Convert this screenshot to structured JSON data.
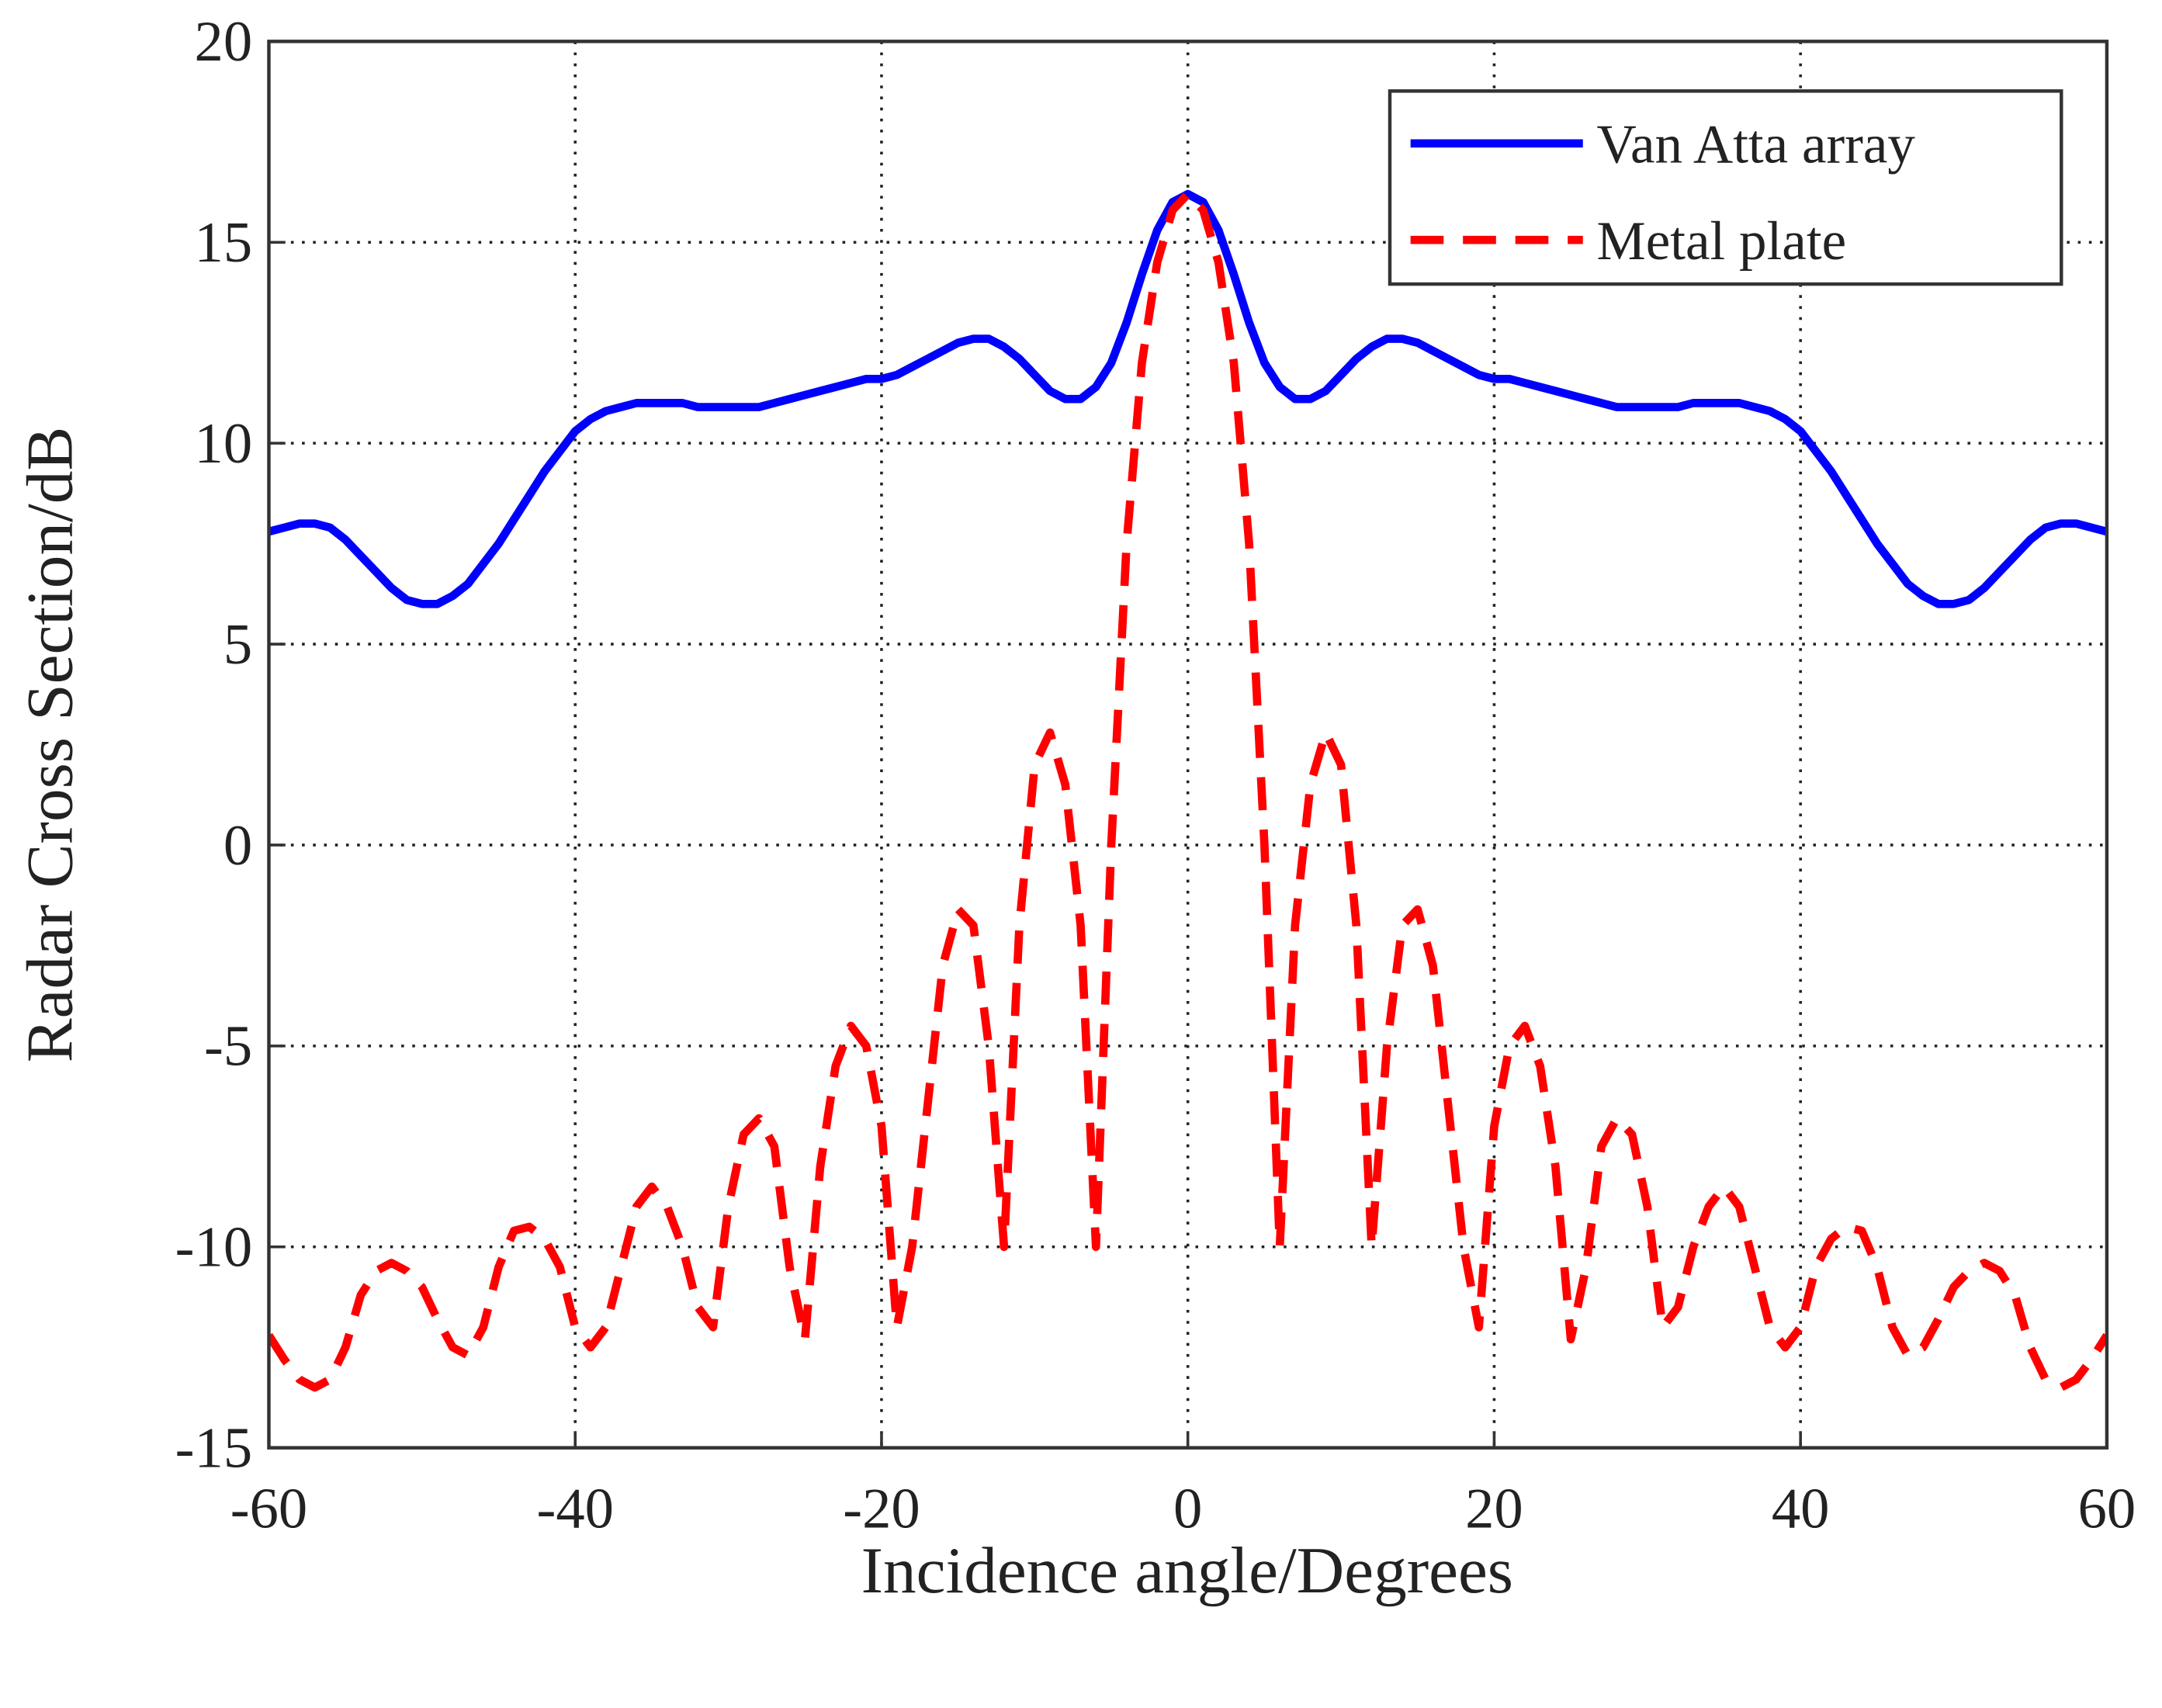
{
  "chart_data": {
    "type": "line",
    "xlabel": "Incidence angle/Degrees",
    "ylabel": "Radar Cross Section/dB",
    "x": [
      -60,
      -59,
      -58,
      -57,
      -56,
      -55,
      -54,
      -53,
      -52,
      -51,
      -50,
      -49,
      -48,
      -47,
      -46,
      -45,
      -44,
      -43,
      -42,
      -41,
      -40,
      -39,
      -38,
      -37,
      -36,
      -35,
      -34,
      -33,
      -32,
      -31,
      -30,
      -29,
      -28,
      -27,
      -26,
      -25,
      -24,
      -23,
      -22,
      -21,
      -20,
      -19,
      -18,
      -17,
      -16,
      -15,
      -14,
      -13,
      -12,
      -11,
      -10,
      -9,
      -8,
      -7,
      -6,
      -5,
      -4,
      -3,
      -2,
      -1,
      0,
      1,
      2,
      3,
      4,
      5,
      6,
      7,
      8,
      9,
      10,
      11,
      12,
      13,
      14,
      15,
      16,
      17,
      18,
      19,
      20,
      21,
      22,
      23,
      24,
      25,
      26,
      27,
      28,
      29,
      30,
      31,
      32,
      33,
      34,
      35,
      36,
      37,
      38,
      39,
      40,
      41,
      42,
      43,
      44,
      45,
      46,
      47,
      48,
      49,
      50,
      51,
      52,
      53,
      54,
      55,
      56,
      57,
      58,
      59,
      60
    ],
    "series": [
      {
        "name": "Van Atta array",
        "color": "#0000ff",
        "dash": false,
        "values": [
          7.8,
          7.9,
          8,
          8,
          7.9,
          7.6,
          7.2,
          6.8,
          6.4,
          6.1,
          6,
          6,
          6.2,
          6.5,
          7,
          7.5,
          8.1,
          8.7,
          9.3,
          9.8,
          10.3,
          10.6,
          10.8,
          10.9,
          11,
          11,
          11,
          11,
          10.9,
          10.9,
          10.9,
          10.9,
          10.9,
          11,
          11.1,
          11.2,
          11.3,
          11.4,
          11.5,
          11.6,
          11.6,
          11.7,
          11.9,
          12.1,
          12.3,
          12.5,
          12.6,
          12.6,
          12.4,
          12.1,
          11.7,
          11.3,
          11.1,
          11.1,
          11.4,
          12,
          13,
          14.2,
          15.3,
          16,
          16.2,
          16,
          15.3,
          14.2,
          13,
          12,
          11.4,
          11.1,
          11.1,
          11.3,
          11.7,
          12.1,
          12.4,
          12.6,
          12.6,
          12.5,
          12.3,
          12.1,
          11.9,
          11.7,
          11.6,
          11.6,
          11.5,
          11.4,
          11.3,
          11.2,
          11.1,
          11,
          10.9,
          10.9,
          10.9,
          10.9,
          10.9,
          11,
          11,
          11,
          11,
          10.9,
          10.8,
          10.6,
          10.3,
          9.8,
          9.3,
          8.7,
          8.1,
          7.5,
          7,
          6.5,
          6.2,
          6,
          6,
          6.1,
          6.4,
          6.8,
          7.2,
          7.6,
          7.9,
          8,
          8,
          7.9,
          7.8
        ]
      },
      {
        "name": "Metal plate",
        "color": "#ff0000",
        "dash": true,
        "values": [
          -12.2,
          -12.8,
          -13.3,
          -13.5,
          -13.3,
          -12.5,
          -11.2,
          -10.6,
          -10.4,
          -10.6,
          -11,
          -11.8,
          -12.5,
          -12.7,
          -12,
          -10.5,
          -9.6,
          -9.5,
          -9.8,
          -10.5,
          -12,
          -12.5,
          -12,
          -10.5,
          -9,
          -8.5,
          -9,
          -10,
          -11.5,
          -12,
          -9,
          -7.2,
          -6.8,
          -7.5,
          -10.5,
          -12.3,
          -8,
          -5.5,
          -4.5,
          -5,
          -7,
          -12,
          -10,
          -6.5,
          -3,
          -1.6,
          -2,
          -5,
          -10,
          -2,
          2,
          2.8,
          1.5,
          -2,
          -10,
          0,
          7.5,
          12,
          14.5,
          15.8,
          16.2,
          15.8,
          14.5,
          12,
          7.5,
          0,
          -10,
          -2,
          1.5,
          2.8,
          2,
          -2,
          -10,
          -5,
          -2,
          -1.6,
          -3,
          -6.5,
          -10,
          -12,
          -7,
          -5,
          -4.5,
          -5.5,
          -8,
          -12.3,
          -10.5,
          -7.5,
          -6.8,
          -7.2,
          -9,
          -12,
          -11.5,
          -10,
          -9,
          -8.5,
          -9,
          -10.5,
          -12,
          -12.5,
          -12,
          -10.5,
          -9.8,
          -9.5,
          -9.6,
          -10.5,
          -12,
          -12.7,
          -12.5,
          -11.8,
          -11,
          -10.6,
          -10.4,
          -10.6,
          -11.2,
          -12.5,
          -13.3,
          -13.5,
          -13.3,
          -12.8,
          -12.2
        ]
      }
    ],
    "xlim": [
      -60,
      60
    ],
    "xticks": [
      -60,
      -40,
      -20,
      0,
      20,
      40,
      60
    ],
    "ylim": [
      -15,
      20
    ],
    "yticks": [
      -15,
      -10,
      -5,
      0,
      5,
      10,
      15,
      20
    ],
    "grid": true,
    "legend": "upper right"
  }
}
